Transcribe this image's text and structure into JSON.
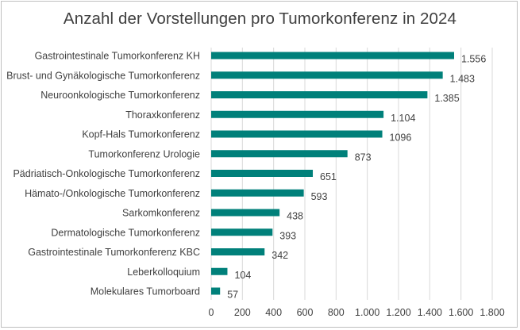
{
  "chart_data": {
    "type": "bar",
    "orientation": "horizontal",
    "title": "Anzahl der Vorstellungen pro Tumorkonferenz in 2024",
    "xlabel": "",
    "ylabel": "",
    "categories": [
      "Gastrointestinale Tumorkonferenz KH",
      "Brust- und Gynäkologische Tumorkonferenz",
      "Neuroonkologische Tumorkonferenz",
      "Thoraxkonferenz",
      "Kopf-Hals Tumorkonferenz",
      "Tumorkonferenz Urologie",
      "Pädriatisch-Onkologische Tumorkonferenz",
      "Hämato-/Onkologische Tumorkonferenz",
      "Sarkomkonferenz",
      "Dermatologische Tumorkonferenz",
      "Gastrointestinale Tumorkonferenz KBC",
      "Leberkolloquium",
      "Molekulares Tumorboard"
    ],
    "values": [
      1556,
      1483,
      1385,
      1104,
      1096,
      873,
      651,
      593,
      438,
      393,
      342,
      104,
      57
    ],
    "value_labels": [
      "1.556",
      "1.483",
      "1.385",
      "1.104",
      "1096",
      "873",
      "651",
      "593",
      "438",
      "393",
      "342",
      "104",
      "57"
    ],
    "xlim": [
      0,
      1800
    ],
    "x_ticks": [
      0,
      200,
      400,
      600,
      800,
      1000,
      1200,
      1400,
      1600,
      1800
    ],
    "x_tick_labels": [
      "0",
      "200",
      "400",
      "600",
      "800",
      "1.000",
      "1.200",
      "1.400",
      "1.600",
      "1.800"
    ],
    "grid": true,
    "legend": "none",
    "bar_color": "#00807a",
    "grid_color": "#d9d9d9",
    "text_color": "#404040"
  }
}
